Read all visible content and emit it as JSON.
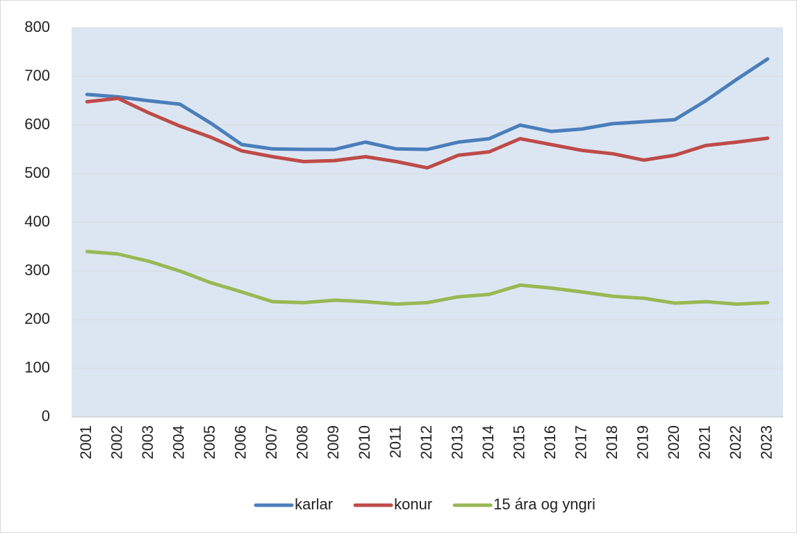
{
  "chart_data": {
    "type": "line",
    "categories": [
      "2001",
      "2002",
      "2003",
      "2004",
      "2005",
      "2006",
      "2007",
      "2008",
      "2009",
      "2010",
      "2011",
      "2012",
      "2013",
      "2014",
      "2015",
      "2016",
      "2017",
      "2018",
      "2019",
      "2020",
      "2021",
      "2022",
      "2023"
    ],
    "series": [
      {
        "name": "karlar",
        "color": "#4a7ebb",
        "values": [
          663,
          658,
          650,
          643,
          604,
          560,
          551,
          550,
          550,
          565,
          551,
          550,
          565,
          572,
          600,
          587,
          592,
          603,
          607,
          611,
          650,
          694,
          736
        ]
      },
      {
        "name": "konur",
        "color": "#be4b48",
        "values": [
          648,
          655,
          625,
          598,
          575,
          547,
          535,
          525,
          527,
          535,
          525,
          512,
          538,
          545,
          572,
          560,
          548,
          541,
          528,
          538,
          558,
          565,
          573
        ]
      },
      {
        "name": "15 ára og yngri",
        "color": "#98b954",
        "values": [
          340,
          335,
          320,
          300,
          276,
          257,
          237,
          235,
          240,
          237,
          232,
          235,
          247,
          252,
          271,
          265,
          257,
          248,
          244,
          234,
          237,
          232,
          235
        ]
      }
    ],
    "ylim": [
      0,
      800
    ],
    "yticks": [
      0,
      100,
      200,
      300,
      400,
      500,
      600,
      700,
      800
    ],
    "grid": true,
    "legend": "bottom"
  }
}
